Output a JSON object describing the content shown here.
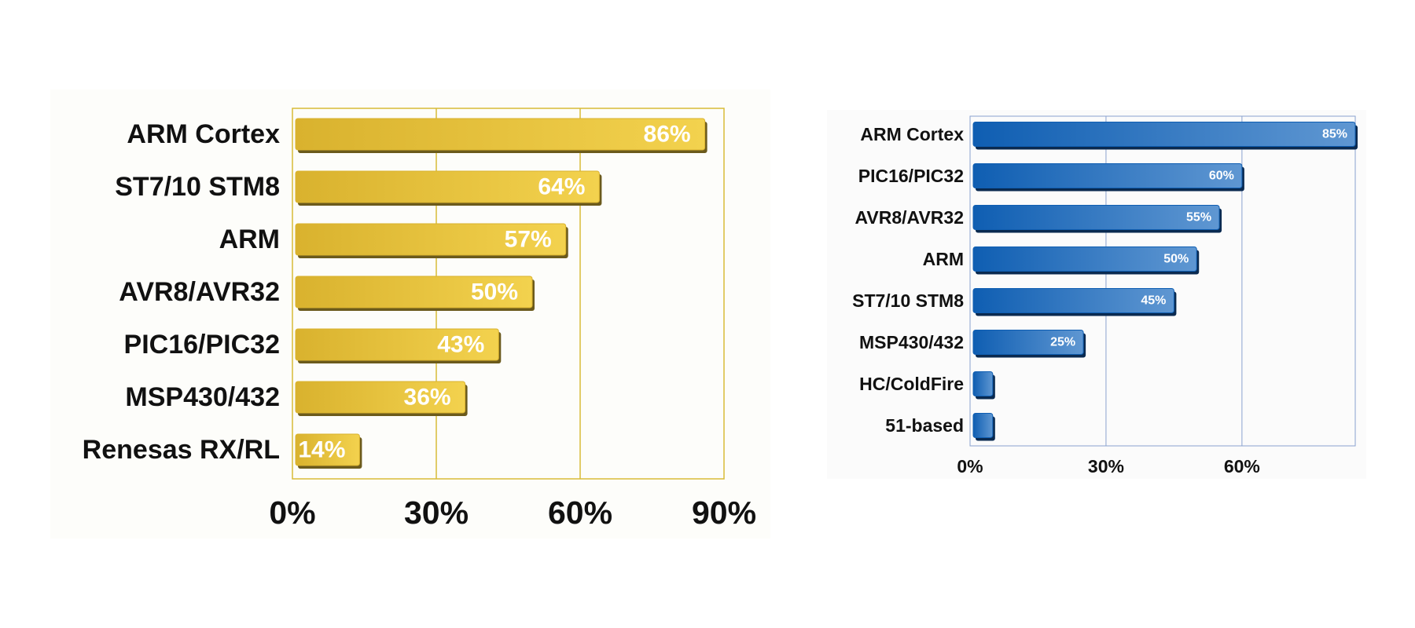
{
  "chart_data": [
    {
      "type": "bar",
      "orientation": "horizontal",
      "categories": [
        "ARM Cortex",
        "ST7/10 STM8",
        "ARM",
        "AVR8/AVR32",
        "PIC16/PIC32",
        "MSP430/432",
        "Renesas RX/RL"
      ],
      "values": [
        86,
        64,
        57,
        50,
        43,
        36,
        14
      ],
      "value_labels": [
        "86%",
        "64%",
        "57%",
        "50%",
        "43%",
        "36%",
        "14%"
      ],
      "xticks": [
        "0%",
        "30%",
        "60%",
        "90%"
      ],
      "xlim": [
        0,
        90
      ],
      "grid": true,
      "colors": {
        "bar_light": "#f3d24e",
        "bar_dark": "#d9b22e",
        "bar_shadow": "#6b5a1c",
        "grid": "#d8bb38"
      },
      "title": "",
      "xlabel": "",
      "ylabel": ""
    },
    {
      "type": "bar",
      "orientation": "horizontal",
      "categories": [
        "ARM Cortex",
        "PIC16/PIC32",
        "AVR8/AVR32",
        "ARM",
        "ST7/10 STM8",
        "MSP430/432",
        "HC/ColdFire",
        "51-based"
      ],
      "values": [
        85,
        60,
        55,
        50,
        45,
        25,
        5,
        5
      ],
      "value_labels": [
        "85%",
        "60%",
        "55%",
        "50%",
        "45%",
        "25%",
        "",
        ""
      ],
      "xticks": [
        "0%",
        "30%",
        "60%"
      ],
      "xlim": [
        0,
        85
      ],
      "grid": true,
      "colors": {
        "bar_light": "#5f97d2",
        "bar_dark": "#0f5eb2",
        "bar_shadow": "#0a2a50",
        "grid": "#8aa2cf"
      },
      "title": "",
      "xlabel": "",
      "ylabel": ""
    }
  ]
}
